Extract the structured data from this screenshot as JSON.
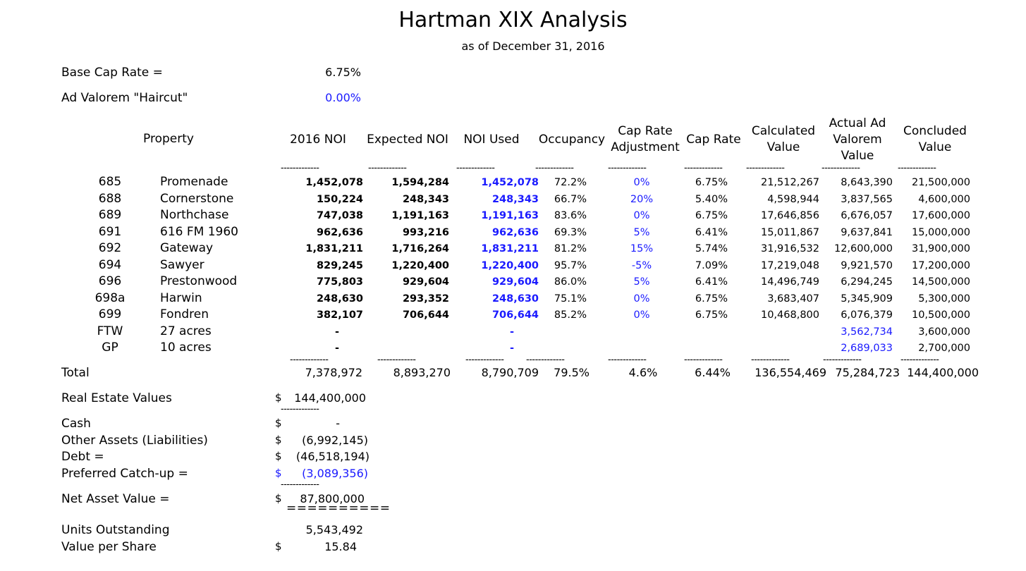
{
  "title": "Hartman XIX Analysis",
  "subtitle": "as of December 31, 2016",
  "params": [
    {
      "label": "Base Cap Rate =",
      "value": "6.75%"
    },
    {
      "label": "Ad Valorem \"Haircut\"",
      "value": "0.00%"
    }
  ],
  "headers": {
    "property": "Property",
    "noi2016": "2016 NOI",
    "expected_noi": "Expected NOI",
    "noi_used": "NOI Used",
    "occupancy": "Occupancy",
    "cap_adj": "Cap Rate Adjustment",
    "cap_rate": "Cap Rate",
    "calc_value": "Calculated Value",
    "actual_ad_valorem": "Actual Ad Valorem Value",
    "concluded": "Concluded Value"
  },
  "separator": "-------------",
  "rows": [
    {
      "id": "685",
      "name": "Promenade",
      "noi2016": "1,452,078",
      "expected": "1,594,284",
      "used": "1,452,078",
      "occ": "72.2%",
      "adj": "0%",
      "cap": "6.75%",
      "calc": "21,512,267",
      "adval": "8,643,390",
      "concluded": "21,500,000"
    },
    {
      "id": "688",
      "name": "Cornerstone",
      "noi2016": "150,224",
      "expected": "248,343",
      "used": "248,343",
      "occ": "66.7%",
      "adj": "20%",
      "cap": "5.40%",
      "calc": "4,598,944",
      "adval": "3,837,565",
      "concluded": "4,600,000"
    },
    {
      "id": "689",
      "name": "Northchase",
      "noi2016": "747,038",
      "expected": "1,191,163",
      "used": "1,191,163",
      "occ": "83.6%",
      "adj": "0%",
      "cap": "6.75%",
      "calc": "17,646,856",
      "adval": "6,676,057",
      "concluded": "17,600,000"
    },
    {
      "id": "691",
      "name": "616 FM 1960",
      "noi2016": "962,636",
      "expected": "993,216",
      "used": "962,636",
      "occ": "69.3%",
      "adj": "5%",
      "cap": "6.41%",
      "calc": "15,011,867",
      "adval": "9,637,841",
      "concluded": "15,000,000"
    },
    {
      "id": "692",
      "name": "Gateway",
      "noi2016": "1,831,211",
      "expected": "1,716,264",
      "used": "1,831,211",
      "occ": "81.2%",
      "adj": "15%",
      "cap": "5.74%",
      "calc": "31,916,532",
      "adval": "12,600,000",
      "concluded": "31,900,000"
    },
    {
      "id": "694",
      "name": "Sawyer",
      "noi2016": "829,245",
      "expected": "1,220,400",
      "used": "1,220,400",
      "occ": "95.7%",
      "adj": "-5%",
      "cap": "7.09%",
      "calc": "17,219,048",
      "adval": "9,921,570",
      "concluded": "17,200,000"
    },
    {
      "id": "696",
      "name": "Prestonwood",
      "noi2016": "775,803",
      "expected": "929,604",
      "used": "929,604",
      "occ": "86.0%",
      "adj": "5%",
      "cap": "6.41%",
      "calc": "14,496,749",
      "adval": "6,294,245",
      "concluded": "14,500,000"
    },
    {
      "id": "698a",
      "name": "Harwin",
      "noi2016": "248,630",
      "expected": "293,352",
      "used": "248,630",
      "occ": "75.1%",
      "adj": "0%",
      "cap": "6.75%",
      "calc": "3,683,407",
      "adval": "5,345,909",
      "concluded": "5,300,000"
    },
    {
      "id": "699",
      "name": "Fondren",
      "noi2016": "382,107",
      "expected": "706,644",
      "used": "706,644",
      "occ": "85.2%",
      "adj": "0%",
      "cap": "6.75%",
      "calc": "10,468,800",
      "adval": "6,076,379",
      "concluded": "10,500,000"
    },
    {
      "id": "FTW",
      "name": "27 acres",
      "noi2016": "-",
      "expected": "",
      "used": "-",
      "occ": "",
      "adj": "",
      "cap": "",
      "calc": "",
      "adval": "3,562,734",
      "concluded": "3,600,000"
    },
    {
      "id": "GP",
      "name": "10 acres",
      "noi2016": "-",
      "expected": "",
      "used": "-",
      "occ": "",
      "adj": "",
      "cap": "",
      "calc": "",
      "adval": "2,689,033",
      "concluded": "2,700,000"
    }
  ],
  "total": {
    "label": "Total",
    "noi2016": "7,378,972",
    "expected": "8,893,270",
    "used": "8,790,709",
    "occ": "79.5%",
    "adj": "4.6%",
    "cap": "6.44%",
    "calc": "136,554,469",
    "adval": "75,284,723",
    "concluded": "144,400,000"
  },
  "nav": {
    "currency": "$",
    "real_estate_label": "Real Estate Values",
    "real_estate_value": "144,400,000",
    "cash_label": "Cash",
    "cash_value": "-",
    "other_label": "Other Assets (Liabilities)",
    "other_value": "(6,992,145)",
    "debt_label": "Debt =",
    "debt_value": "(46,518,194)",
    "pref_label": "Preferred Catch-up =",
    "pref_value": "(3,089,356)",
    "nav_label": "Net Asset Value =",
    "nav_value": "87,800,000",
    "double_rule": "==========",
    "units_label": "Units Outstanding",
    "units_value": "5,543,492",
    "vps_label": "Value per Share",
    "vps_value": "15.84"
  }
}
